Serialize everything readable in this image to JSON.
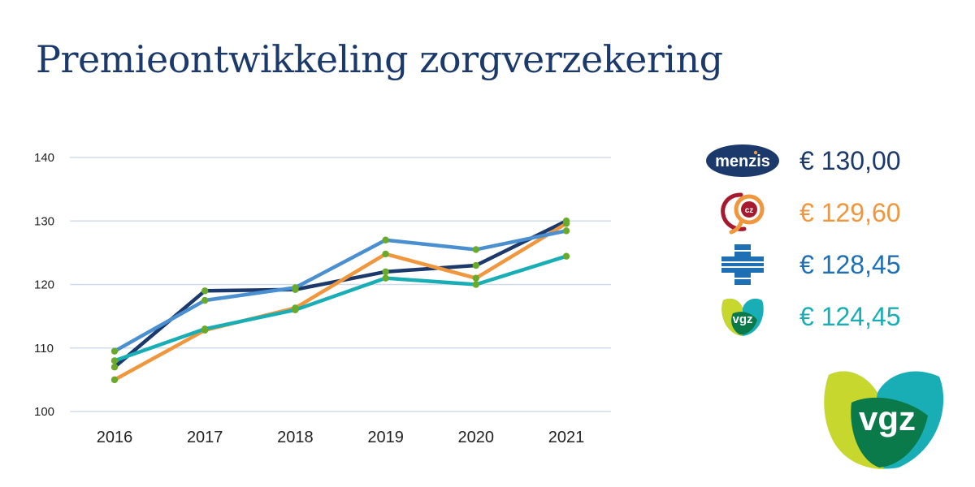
{
  "title": "Premieontwikkeling zorgverzekering",
  "chart_data": {
    "type": "line",
    "title": "Premieontwikkeling zorgverzekering",
    "xlabel": "",
    "ylabel": "",
    "categories": [
      "2016",
      "2017",
      "2018",
      "2019",
      "2020",
      "2021"
    ],
    "ylim": [
      100,
      140
    ],
    "yticks": [
      "140",
      "130",
      "120",
      "110",
      "100"
    ],
    "grid": true,
    "legend_position": "right",
    "marker_color": "#6aaa2a",
    "series": [
      {
        "name": "",
        "color": "#1b3a6b",
        "values": [
          107.0,
          119.0,
          119.2,
          122.0,
          123.0,
          130.0
        ]
      },
      {
        "name": "",
        "color": "#f0963d",
        "values": [
          105.0,
          112.8,
          116.3,
          124.8,
          121.0,
          129.6
        ]
      },
      {
        "name": "",
        "color": "#4a8fd0",
        "values": [
          109.5,
          117.5,
          119.5,
          127.0,
          125.5,
          128.45
        ]
      },
      {
        "name": "",
        "color": "#19aeb5",
        "values": [
          108.0,
          113.0,
          116.0,
          121.0,
          120.0,
          124.45
        ]
      }
    ]
  },
  "legend": [
    {
      "logo": "menzis-logo",
      "logo_text": "menzis",
      "value": "€ 130,00",
      "color": "#1b3a6b"
    },
    {
      "logo": "cz-logo",
      "logo_text": "cz",
      "value": "€ 129,60",
      "color": "#f0963d"
    },
    {
      "logo": "cross-logo",
      "value": "€ 128,45",
      "color": "#1f6fb5"
    },
    {
      "logo": "vgz-logo",
      "logo_text": "vgz",
      "value": "€ 124,45",
      "color": "#19aeb5"
    }
  ],
  "brand": {
    "logo": "vgz-logo",
    "logo_text": "vgz"
  }
}
